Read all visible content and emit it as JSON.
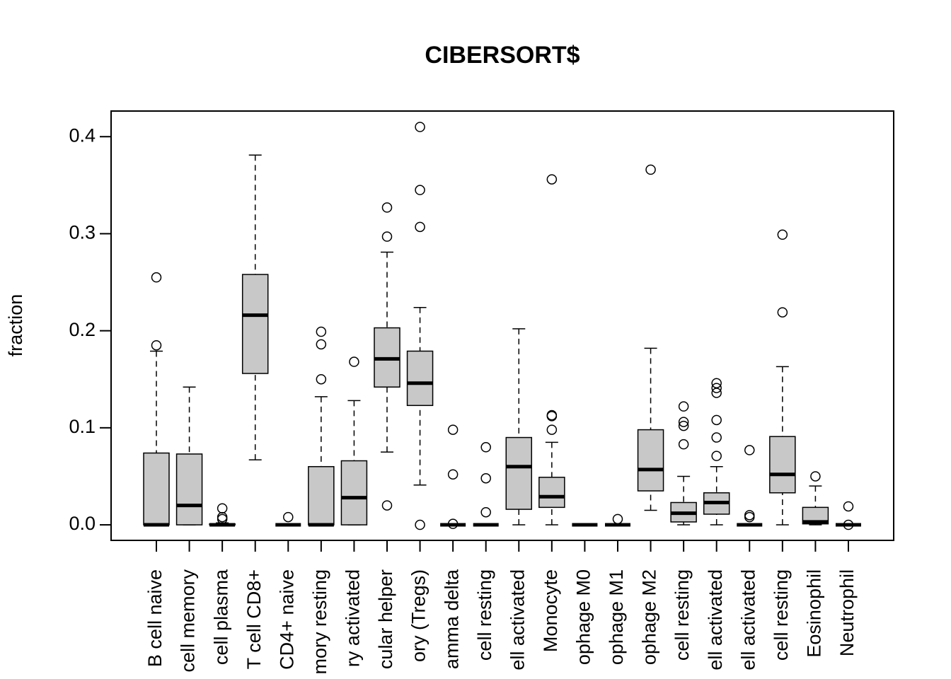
{
  "chart_data": {
    "type": "boxplot",
    "title": "CIBERSORT$",
    "y_label": "fraction",
    "categories": [
      "B cell naive",
      "cell memory",
      "cell plasma",
      "T cell CD8+",
      "CD4+ naive",
      "mory resting",
      "ry activated",
      "cular helper",
      "ory (Tregs)",
      "amma delta",
      "cell resting",
      "ell activated",
      "Monocyte",
      "ophage M0",
      "ophage M1",
      "ophage M2",
      "cell resting",
      "ell activated",
      "ell activated",
      "cell resting",
      "Eosinophil",
      "Neutrophil"
    ],
    "boxes": [
      {
        "min": 0,
        "q1": 0,
        "median": 0,
        "q3": 0.074,
        "max": 0.179,
        "outliers": [
          0.255,
          0.185
        ]
      },
      {
        "min": 0,
        "q1": 0,
        "median": 0.02,
        "q3": 0.073,
        "max": 0.142,
        "outliers": []
      },
      {
        "min": 0,
        "q1": 0,
        "median": 0,
        "q3": 0.001,
        "max": 0.002,
        "outliers": [
          0.017,
          0.008,
          0.006
        ]
      },
      {
        "min": 0.067,
        "q1": 0.156,
        "median": 0.216,
        "q3": 0.258,
        "max": 0.381,
        "outliers": []
      },
      {
        "min": 0,
        "q1": 0,
        "median": 0,
        "q3": 0,
        "max": 0,
        "outliers": [
          0.008
        ]
      },
      {
        "min": 0,
        "q1": 0,
        "median": 0,
        "q3": 0.06,
        "max": 0.132,
        "outliers": [
          0.199,
          0.186,
          0.15
        ]
      },
      {
        "min": 0,
        "q1": 0,
        "median": 0.028,
        "q3": 0.066,
        "max": 0.128,
        "outliers": [
          0.168
        ]
      },
      {
        "min": 0.075,
        "q1": 0.142,
        "median": 0.171,
        "q3": 0.203,
        "max": 0.281,
        "outliers": [
          0.02,
          0.297,
          0.327
        ]
      },
      {
        "min": 0.041,
        "q1": 0.123,
        "median": 0.146,
        "q3": 0.179,
        "max": 0.224,
        "outliers": [
          0,
          0.307,
          0.345,
          0.41
        ]
      },
      {
        "min": 0,
        "q1": 0,
        "median": 0,
        "q3": 0,
        "max": 0,
        "outliers": [
          0.001,
          0.052,
          0.098
        ]
      },
      {
        "min": 0,
        "q1": 0,
        "median": 0,
        "q3": 0,
        "max": 0,
        "outliers": [
          0.013,
          0.048,
          0.08
        ]
      },
      {
        "min": 0,
        "q1": 0.016,
        "median": 0.06,
        "q3": 0.09,
        "max": 0.202,
        "outliers": []
      },
      {
        "min": 0,
        "q1": 0.018,
        "median": 0.029,
        "q3": 0.049,
        "max": 0.085,
        "outliers": [
          0.098,
          0.112,
          0.113,
          0.356
        ]
      },
      {
        "min": 0,
        "q1": 0,
        "median": 0,
        "q3": 0,
        "max": 0,
        "outliers": []
      },
      {
        "min": 0,
        "q1": 0,
        "median": 0,
        "q3": 0,
        "max": 0,
        "outliers": [
          0.006
        ]
      },
      {
        "min": 0.015,
        "q1": 0.035,
        "median": 0.057,
        "q3": 0.098,
        "max": 0.182,
        "outliers": [
          0.366
        ]
      },
      {
        "min": 0,
        "q1": 0.003,
        "median": 0.012,
        "q3": 0.023,
        "max": 0.05,
        "outliers": [
          0.083,
          0.102,
          0.106,
          0.122
        ]
      },
      {
        "min": 0,
        "q1": 0.011,
        "median": 0.023,
        "q3": 0.033,
        "max": 0.06,
        "outliers": [
          0.071,
          0.09,
          0.108,
          0.136,
          0.141,
          0.146
        ]
      },
      {
        "min": 0,
        "q1": 0,
        "median": 0,
        "q3": 0,
        "max": 0,
        "outliers": [
          0.008,
          0.01,
          0.077
        ]
      },
      {
        "min": 0,
        "q1": 0.033,
        "median": 0.052,
        "q3": 0.091,
        "max": 0.163,
        "outliers": [
          0.219,
          0.299
        ]
      },
      {
        "min": 0,
        "q1": 0.001,
        "median": 0.003,
        "q3": 0.018,
        "max": 0.04,
        "outliers": [
          0.05
        ]
      },
      {
        "min": 0,
        "q1": 0,
        "median": 0,
        "q3": 0,
        "max": 0,
        "outliers": [
          0,
          0.019
        ]
      }
    ],
    "color": "#c8c8c8",
    "ylim": [
      -0.016,
      0.4264
    ],
    "yticks": [
      {
        "value": 0,
        "label": "0.0"
      },
      0.1,
      0.2,
      0.3,
      0.4
    ]
  }
}
